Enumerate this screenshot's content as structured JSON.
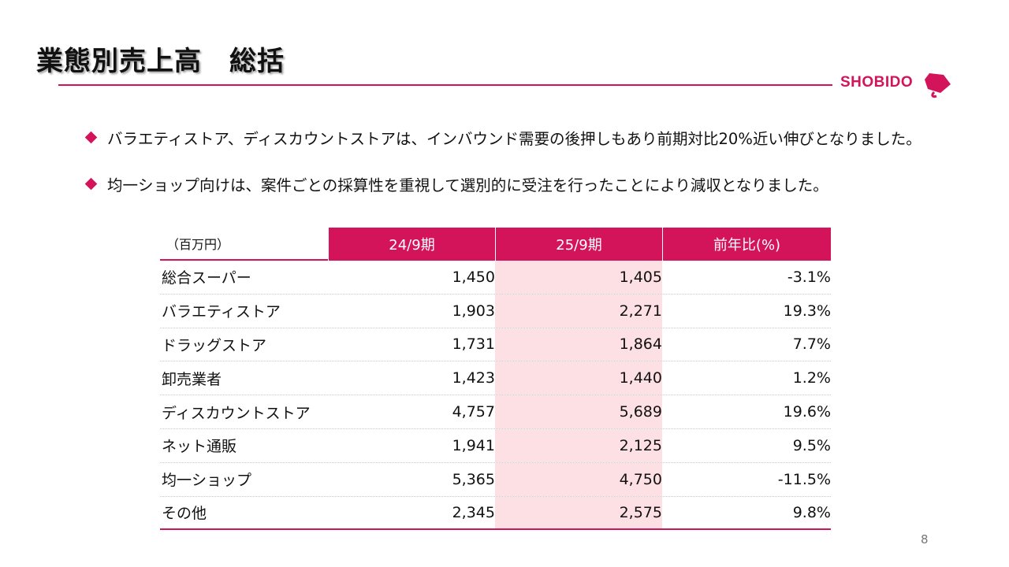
{
  "title": "業態別売上高　総括",
  "logo": {
    "text": "SHOBIDO",
    "color": "#d4145a"
  },
  "accent_color": "#d4145a",
  "highlight_color": "#fde0e4",
  "bullets": [
    "バラエティストア、ディスカウントストアは、インバウンド需要の後押しもあり前期対比20%近い伸びとなりました。",
    "均一ショップ向けは、案件ごとの採算性を重視して選別的に受注を行ったことにより減収となりました。"
  ],
  "table": {
    "unit_label": "（百万円）",
    "headers": [
      "24/9期",
      "25/9期",
      "前年比(%)"
    ],
    "rows": [
      {
        "name": "総合スーパー",
        "prev": "1,450",
        "curr": "1,405",
        "yoy": "-3.1%"
      },
      {
        "name": "バラエティストア",
        "prev": "1,903",
        "curr": "2,271",
        "yoy": "19.3%"
      },
      {
        "name": "ドラッグストア",
        "prev": "1,731",
        "curr": "1,864",
        "yoy": "7.7%"
      },
      {
        "name": "卸売業者",
        "prev": "1,423",
        "curr": "1,440",
        "yoy": "1.2%"
      },
      {
        "name": "ディスカウントストア",
        "prev": "4,757",
        "curr": "5,689",
        "yoy": "19.6%"
      },
      {
        "name": "ネット通販",
        "prev": "1,941",
        "curr": "2,125",
        "yoy": "9.5%"
      },
      {
        "name": "均一ショップ",
        "prev": "5,365",
        "curr": "4,750",
        "yoy": "-11.5%"
      },
      {
        "name": "その他",
        "prev": "2,345",
        "curr": "2,575",
        "yoy": "9.8%"
      }
    ]
  },
  "page_number": "8"
}
